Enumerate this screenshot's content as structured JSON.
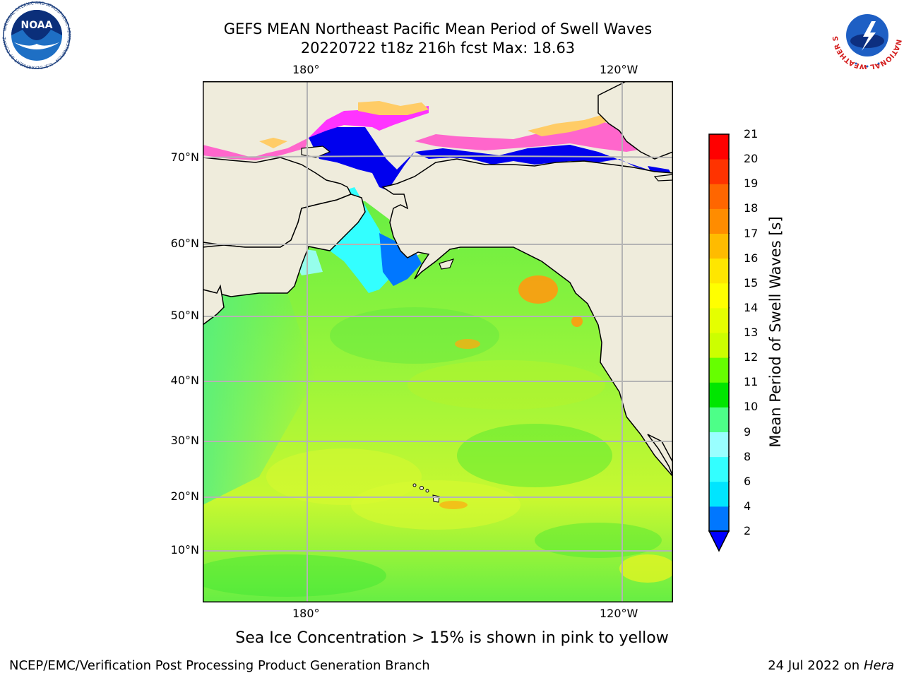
{
  "header": {
    "title_line1": "GEFS MEAN Northeast Pacific Mean Period of Swell Waves",
    "title_line2": "20220722 t18z 216h fcst   Max: 18.63"
  },
  "logos": {
    "left_name": "NOAA",
    "left_ring_text": "NATIONAL OCEANIC AND ATMOSPHERIC ADMINISTRATION · U.S. DEPARTMENT OF COMMERCE",
    "right_ring_text": "NATIONAL WEATHER SERVICE"
  },
  "map": {
    "lon_labels_top": [
      "180°",
      "120°W"
    ],
    "lon_labels_bottom": [
      "180°",
      "120°W"
    ],
    "lat_labels": [
      "70°N",
      "60°N",
      "50°N",
      "40°N",
      "30°N",
      "20°N",
      "10°N"
    ],
    "colors": {
      "land": "#efecdc",
      "ocean_base": "#7cf03a",
      "gridlines": "#b4b4b4",
      "sea_ice": [
        "#ff66cc",
        "#ff33ff",
        "#ffcc66"
      ]
    }
  },
  "colorbar": {
    "label": "Mean Period of Swell Waves [s]",
    "ticks": [
      "21",
      "20",
      "19",
      "18",
      "17",
      "16",
      "15",
      "14",
      "13",
      "12",
      "11",
      "10",
      "9",
      "8",
      "6",
      "4",
      "2"
    ],
    "colors_bottom_to_top": [
      "#0077ff",
      "#00e5ff",
      "#33ffff",
      "#99ffff",
      "#4dff88",
      "#00e600",
      "#66ff00",
      "#ccff00",
      "#e5ff00",
      "#ffff00",
      "#ffe600",
      "#ffbb00",
      "#ff8c00",
      "#ff6600",
      "#ff3300",
      "#ff0000"
    ],
    "extend_min_color": "#0000ff"
  },
  "notes": {
    "sea_ice_note": "Sea Ice Concentration > 15% is shown in pink to yellow"
  },
  "footer": {
    "left": "NCEP/EMC/Verification Post Processing Product Generation Branch",
    "right_date": "24 Jul 2022 on ",
    "right_host": "Hera"
  }
}
